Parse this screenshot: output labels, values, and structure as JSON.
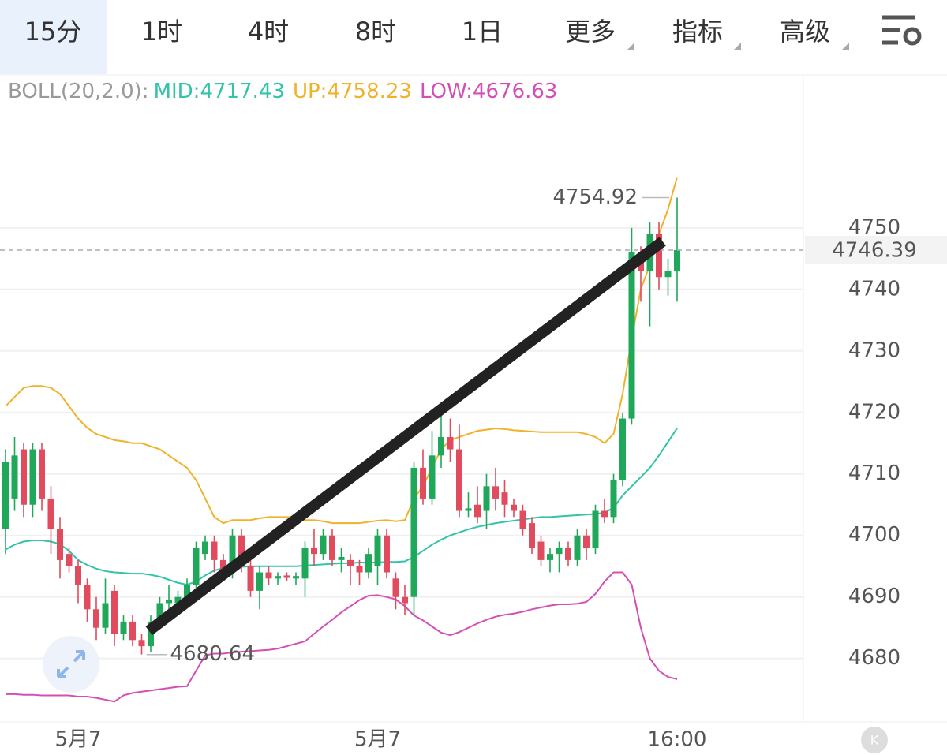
{
  "tabs": [
    "15分",
    "1时",
    "4时",
    "8时",
    "1日",
    "更多",
    "指标",
    "高级"
  ],
  "chart_data": {
    "type": "candlestick",
    "indicator": "BOLL(20,2.0):",
    "categories": [
      null,
      null,
      null,
      null,
      null,
      null,
      null,
      null,
      "5月7",
      null,
      null,
      null,
      null,
      null,
      null,
      null,
      null,
      null,
      null,
      null,
      null,
      null,
      null,
      null,
      null,
      null,
      null,
      null,
      null,
      null,
      null,
      null,
      null,
      null,
      null,
      null,
      null,
      null,
      null,
      null,
      null,
      "5月7",
      null,
      null,
      null,
      null,
      null,
      null,
      null,
      null,
      null,
      null,
      null,
      null,
      null,
      null,
      null,
      null,
      null,
      null,
      null,
      null,
      null,
      null,
      null,
      null,
      null,
      null,
      null,
      null,
      null,
      null,
      null,
      null,
      "16:00"
    ],
    "open": [
      4701,
      4706,
      4714,
      4705,
      4714,
      4706,
      4701,
      4697,
      4695,
      4692,
      4688,
      4685,
      4691,
      4684,
      4686,
      4683,
      4682,
      4686,
      4689,
      4689,
      4690,
      4692,
      4697,
      4699,
      4696,
      4694,
      4700,
      4695,
      4691,
      4694,
      4693,
      4693.5,
      4693,
      4693,
      4698,
      4697,
      4700,
      4696,
      4696,
      4695,
      4694,
      4695,
      4700,
      4693,
      4690,
      4690,
      4711,
      4706,
      4713,
      4716,
      4714,
      4704,
      4705,
      4704,
      4708,
      4707,
      4705,
      4704,
      4702,
      4699,
      4696,
      4697,
      4698,
      4696,
      4700,
      4698,
      4704,
      4703,
      4709,
      4719,
      4746,
      4743,
      4749,
      4742,
      4743
    ],
    "high": [
      4714,
      4716,
      4715,
      4715,
      4715,
      4708,
      4703,
      4698,
      4696,
      4693,
      4690,
      4693,
      4692,
      4687,
      4687,
      4684,
      4687,
      4690,
      4692,
      4691,
      4693,
      4699,
      4700,
      4700,
      4697,
      4701,
      4701,
      4696,
      4695,
      4695,
      4694,
      4694,
      4694,
      4699,
      4701,
      4701,
      4701,
      4698,
      4697,
      4696,
      4698,
      4701,
      4701,
      4694,
      4692,
      4712,
      4714,
      4717,
      4720,
      4719,
      4718,
      4707,
      4708,
      4710,
      4711,
      4709,
      4706,
      4705,
      4703,
      4700,
      4698,
      4699,
      4699,
      4701,
      4701,
      4705,
      4706,
      4710,
      4720,
      4750,
      4747,
      4751,
      4751,
      4745,
      4754.92
    ],
    "low": [
      4697,
      4704,
      4703,
      4703,
      4704,
      4697,
      4693,
      4694,
      4689,
      4686,
      4683,
      4684,
      4682,
      4683,
      4682,
      4680.64,
      4681,
      4685,
      4688,
      4688,
      4689,
      4691,
      4696,
      4694,
      4693,
      4693,
      4694,
      4690,
      4688,
      4692,
      4692,
      4692.6,
      4692,
      4690,
      4695,
      4696,
      4695,
      4694,
      4692,
      4692,
      4693,
      4692,
      4693,
      4688,
      4687,
      4687,
      4705,
      4705,
      4711,
      4712,
      4703,
      4703,
      4702,
      4701,
      4704,
      4703,
      4703,
      4700,
      4697,
      4695,
      4694,
      4694,
      4695,
      4695,
      4696,
      4697,
      4702,
      4702,
      4708,
      4718,
      4738,
      4734,
      4740,
      4739,
      4738
    ],
    "close": [
      4712,
      4713,
      4705,
      4714,
      4706,
      4701,
      4696,
      4695,
      4692,
      4688,
      4685,
      4689,
      4684,
      4686,
      4683,
      4682,
      4686,
      4689,
      4689.5,
      4690,
      4692,
      4698,
      4699,
      4696,
      4694,
      4700,
      4696,
      4691,
      4694,
      4693,
      4693.4,
      4693.1,
      4693.4,
      4698,
      4697,
      4700,
      4696,
      4696.5,
      4695,
      4694,
      4697,
      4700,
      4694,
      4690,
      4689,
      4711,
      4706,
      4713,
      4716,
      4714,
      4704,
      4704.4,
      4703,
      4708,
      4706,
      4705,
      4704,
      4701,
      4698,
      4696,
      4697,
      4698,
      4696,
      4700,
      4698,
      4704,
      4703,
      4709,
      4719,
      4746,
      4743,
      4749,
      4742,
      4743,
      4746.39
    ],
    "up_color": "#1fa85a",
    "down_color": "#e04b5d",
    "bands": [
      {
        "label": "MID:4717.43",
        "color": "#33c3a8",
        "values": [
          4697.7,
          4698.5,
          4699,
          4699.2,
          4699.2,
          4699,
          4698.6,
          4697.5,
          4696,
          4695.2,
          4694.6,
          4694.2,
          4694,
          4693.9,
          4693.8,
          4693.8,
          4693.6,
          4693.3,
          4692.8,
          4692.3,
          4692,
          4692.5,
          4693.5,
          4694.3,
          4694.7,
          4694.8,
          4694.9,
          4695,
          4695,
          4695,
          4695,
          4695,
          4695,
          4695.1,
          4695.2,
          4695.3,
          4695.4,
          4695.5,
          4695.5,
          4695.6,
          4695.6,
          4695.6,
          4695.7,
          4695.7,
          4695.8,
          4696.5,
          4697.5,
          4698.5,
          4699.3,
          4700,
          4700.5,
          4701,
          4701.4,
          4701.7,
          4702,
          4702.2,
          4702.4,
          4702.6,
          4702.8,
          4703,
          4703,
          4703.1,
          4703.2,
          4703.3,
          4703.4,
          4703.5,
          4703.7,
          4704.5,
          4706.5,
          4708,
          4709.5,
          4711,
          4713,
          4715.2,
          4717.43
        ]
      },
      {
        "label": "UP:4758.23",
        "color": "#f0b22a",
        "values": [
          4721,
          4722.5,
          4724,
          4724.3,
          4724.3,
          4724,
          4723,
          4721,
          4719,
          4717.5,
          4716.5,
          4716,
          4715.5,
          4715.3,
          4715,
          4715,
          4714.5,
          4714,
          4713,
          4712,
          4711,
          4709,
          4706,
          4703,
          4702,
          4702.5,
          4702.5,
          4702.5,
          4702.8,
          4703,
          4703,
          4703,
          4703,
          4702.5,
          4702.5,
          4702.3,
          4702,
          4702,
          4702,
          4702,
          4702.2,
          4702.4,
          4702.5,
          4702.3,
          4702.5,
          4706,
          4708,
          4711,
          4714,
          4715.5,
          4716,
          4716.5,
          4717,
          4717.2,
          4717.4,
          4717.3,
          4717.1,
          4717,
          4716.9,
          4716.8,
          4716.8,
          4716.8,
          4716.8,
          4716.8,
          4716.5,
          4716,
          4715,
          4716.5,
          4723,
          4732,
          4740,
          4744,
          4749,
          4753,
          4758.23
        ]
      },
      {
        "label": "LOW:4676.63",
        "color": "#d34fb5",
        "values": [
          4674.2,
          4674.2,
          4674.1,
          4674.1,
          4674,
          4674,
          4674,
          4674,
          4673.8,
          4673.8,
          4673.6,
          4673.3,
          4673,
          4674,
          4674.4,
          4674.6,
          4674.8,
          4675,
          4675.2,
          4675.4,
          4675.5,
          4678,
          4680.5,
          4680.8,
          4680.8,
          4681,
          4681.1,
          4681.2,
          4681.3,
          4681.4,
          4681.6,
          4682,
          4682.4,
          4682.8,
          4684,
          4685.2,
          4686.3,
          4687.5,
          4688.5,
          4689.5,
          4690.2,
          4690.3,
          4690,
          4689.6,
          4688.5,
          4687,
          4686.2,
          4685.2,
          4684.2,
          4683.8,
          4684.3,
          4685,
          4685.7,
          4686.3,
          4686.8,
          4687.1,
          4687.3,
          4687.6,
          4688,
          4688.3,
          4688.6,
          4688.8,
          4688.8,
          4688.9,
          4689.2,
          4690.5,
          4692.5,
          4694,
          4694,
          4692,
          4685,
          4680,
          4678,
          4677,
          4676.63
        ]
      }
    ],
    "trend_line": {
      "x": [
        15.8,
        72.4
      ],
      "y": [
        4684.5,
        4747.8
      ],
      "color": "#222222"
    },
    "ylim": [
      4669.7,
      4774.6
    ],
    "yticks": [
      4680,
      4690,
      4700,
      4710,
      4720,
      4730,
      4740,
      4750
    ],
    "grid": true
  }
}
